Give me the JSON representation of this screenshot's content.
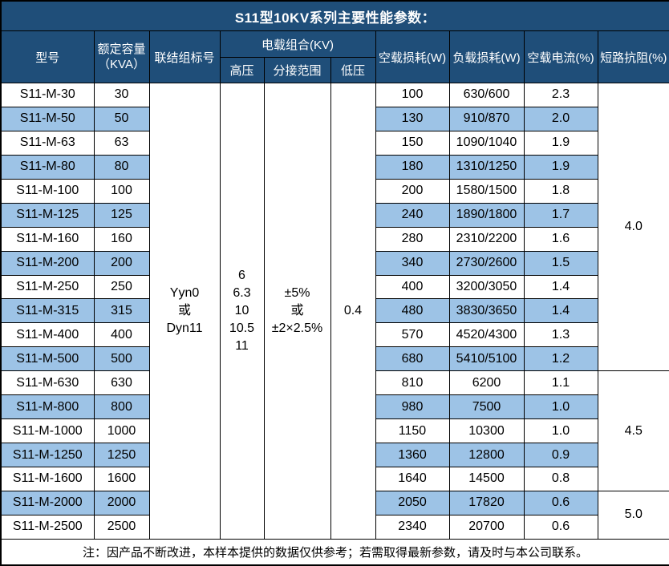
{
  "title": "S11型10KV系列主要性能参数：",
  "header": {
    "model": "型号",
    "capacity_line1": "额定容量",
    "capacity_line2": "（KVA）",
    "connection": "联结组标号",
    "load_combo": "电载组合(KV)",
    "hv": "高压",
    "tap": "分接范围",
    "lv": "低压",
    "no_load_loss": "空载损耗(W)",
    "load_loss": "负载损耗(W)",
    "no_load_current": "空载电流(%)",
    "impedance": "短路抗阻(%)"
  },
  "merged": {
    "connection_lines": [
      "Yyn0",
      "或",
      "Dyn11"
    ],
    "hv_lines": [
      "6",
      "6.3",
      "10",
      "10.5",
      "11"
    ],
    "tap_lines": [
      "±5%",
      "或",
      "±2×2.5%"
    ],
    "lv": "0.4"
  },
  "rows": [
    {
      "model": "S11-M-30",
      "capacity": "30",
      "no_load_loss": "100",
      "load_loss": "630/600",
      "no_load_current": "2.3"
    },
    {
      "model": "S11-M-50",
      "capacity": "50",
      "no_load_loss": "130",
      "load_loss": "910/870",
      "no_load_current": "2.0"
    },
    {
      "model": "S11-M-63",
      "capacity": "63",
      "no_load_loss": "150",
      "load_loss": "1090/1040",
      "no_load_current": "1.9"
    },
    {
      "model": "S11-M-80",
      "capacity": "80",
      "no_load_loss": "180",
      "load_loss": "1310/1250",
      "no_load_current": "1.9"
    },
    {
      "model": "S11-M-100",
      "capacity": "100",
      "no_load_loss": "200",
      "load_loss": "1580/1500",
      "no_load_current": "1.8"
    },
    {
      "model": "S11-M-125",
      "capacity": "125",
      "no_load_loss": "240",
      "load_loss": "1890/1800",
      "no_load_current": "1.7"
    },
    {
      "model": "S11-M-160",
      "capacity": "160",
      "no_load_loss": "280",
      "load_loss": "2310/2200",
      "no_load_current": "1.6"
    },
    {
      "model": "S11-M-200",
      "capacity": "200",
      "no_load_loss": "340",
      "load_loss": "2730/2600",
      "no_load_current": "1.5"
    },
    {
      "model": "S11-M-250",
      "capacity": "250",
      "no_load_loss": "400",
      "load_loss": "3200/3050",
      "no_load_current": "1.4"
    },
    {
      "model": "S11-M-315",
      "capacity": "315",
      "no_load_loss": "480",
      "load_loss": "3830/3650",
      "no_load_current": "1.4"
    },
    {
      "model": "S11-M-400",
      "capacity": "400",
      "no_load_loss": "570",
      "load_loss": "4520/4300",
      "no_load_current": "1.3"
    },
    {
      "model": "S11-M-500",
      "capacity": "500",
      "no_load_loss": "680",
      "load_loss": "5410/5100",
      "no_load_current": "1.2"
    },
    {
      "model": "S11-M-630",
      "capacity": "630",
      "no_load_loss": "810",
      "load_loss": "6200",
      "no_load_current": "1.1"
    },
    {
      "model": "S11-M-800",
      "capacity": "800",
      "no_load_loss": "980",
      "load_loss": "7500",
      "no_load_current": "1.0"
    },
    {
      "model": "S11-M-1000",
      "capacity": "1000",
      "no_load_loss": "1150",
      "load_loss": "10300",
      "no_load_current": "1.0"
    },
    {
      "model": "S11-M-1250",
      "capacity": "1250",
      "no_load_loss": "1360",
      "load_loss": "12800",
      "no_load_current": "0.9"
    },
    {
      "model": "S11-M-1600",
      "capacity": "1600",
      "no_load_loss": "1640",
      "load_loss": "14500",
      "no_load_current": "0.8"
    },
    {
      "model": "S11-M-2000",
      "capacity": "2000",
      "no_load_loss": "2050",
      "load_loss": "17820",
      "no_load_current": "0.6"
    },
    {
      "model": "S11-M-2500",
      "capacity": "2500",
      "no_load_loss": "2340",
      "load_loss": "20700",
      "no_load_current": "0.6"
    }
  ],
  "impedance_groups": [
    {
      "value": "4.0",
      "span": 12
    },
    {
      "value": "4.5",
      "span": 5
    },
    {
      "value": "5.0",
      "span": 2
    }
  ],
  "note": "注：因产品不断改进，本样本提供的数据仅供参考；若需取得最新参数，请及时与本公司联系。",
  "colors": {
    "header_bg": "#1F4E79",
    "stripe_bg": "#9DC3E6",
    "border": "#000000",
    "header_text": "#FFFFFF",
    "body_text": "#000000"
  }
}
